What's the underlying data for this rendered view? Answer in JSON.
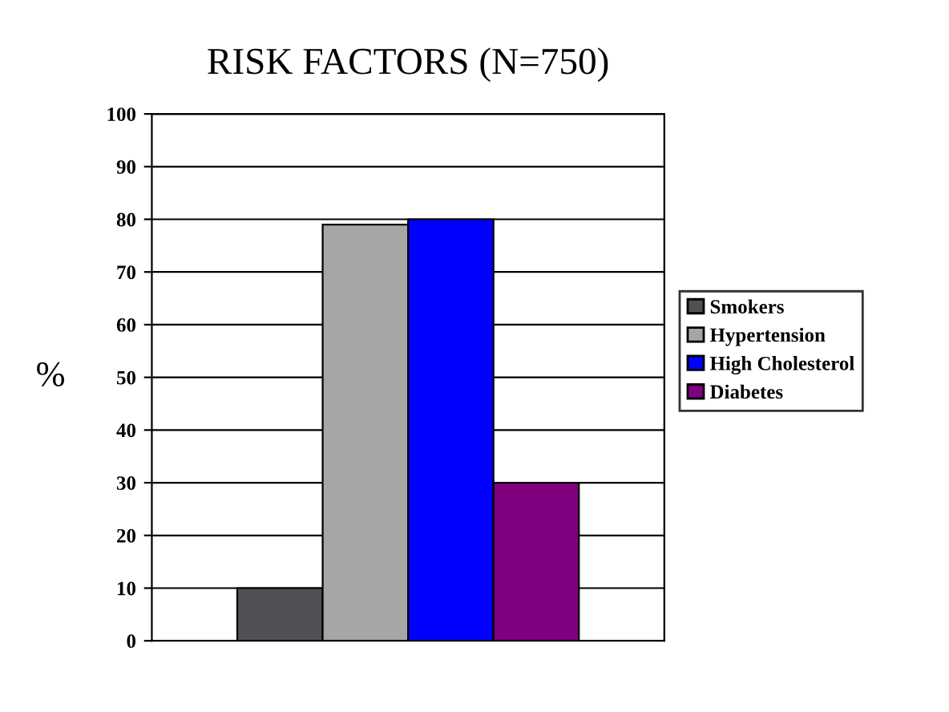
{
  "chart_data": {
    "type": "bar",
    "title": "RISK FACTORS (N=750)",
    "ylabel": "%",
    "categories": [
      null
    ],
    "series": [
      {
        "name": "Smokers",
        "color": "#505055",
        "values": [
          10
        ]
      },
      {
        "name": "Hypertension",
        "color": "#a6a6a8",
        "values": [
          79
        ]
      },
      {
        "name": "High Cholesterol",
        "color": "#0000ff",
        "values": [
          80
        ]
      },
      {
        "name": "Diabetes",
        "color": "#800080",
        "values": [
          30
        ]
      }
    ],
    "ylim": [
      0,
      100
    ],
    "yticks": [
      0,
      10,
      20,
      30,
      40,
      50,
      60,
      70,
      80,
      90,
      100
    ],
    "grid": "y",
    "legend": "right"
  }
}
